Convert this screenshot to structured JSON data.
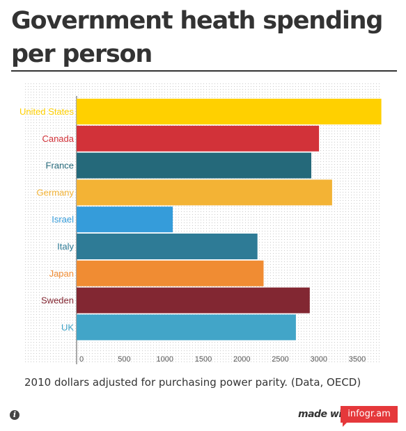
{
  "chart_data": {
    "type": "bar",
    "orientation": "horizontal",
    "title": "Government heath spending per person",
    "categories": [
      "United States",
      "Canada",
      "France",
      "Germany",
      "Israel",
      "Italy",
      "Japan",
      "Sweden",
      "UK"
    ],
    "values": [
      3960,
      3150,
      3050,
      3320,
      1250,
      2350,
      2430,
      3030,
      2850
    ],
    "colors": [
      "#ffd000",
      "#d23239",
      "#25697a",
      "#f3b335",
      "#359cda",
      "#2e7b96",
      "#f08c33",
      "#822732",
      "#42a5c8"
    ],
    "xticks": [
      "0",
      "500",
      "1000",
      "1500",
      "2000",
      "2500",
      "3000",
      "3500"
    ],
    "xlim": [
      0,
      3960
    ],
    "grid": "dotted background"
  },
  "caption": "2010 dollars adjusted for purchasing power parity. (Data, OECD)",
  "footer": {
    "info_icon": "i",
    "made_with": "made with",
    "brand": "infogr.am"
  }
}
